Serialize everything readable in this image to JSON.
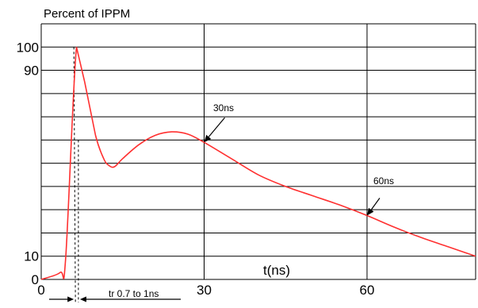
{
  "chart_data": {
    "type": "line",
    "title": "Percent of IPPM",
    "xlabel": "t(ns)",
    "ylabel": "Percent of IPPM",
    "xlim": [
      0,
      80
    ],
    "ylim": [
      0,
      110
    ],
    "y_ticks": [
      0,
      10,
      90,
      100
    ],
    "x_ticks": [
      0,
      30,
      60
    ],
    "grid": true,
    "series": [
      {
        "color": "#ff3030",
        "points": [
          [
            0,
            0
          ],
          [
            3.5,
            3
          ],
          [
            4.5,
            9
          ],
          [
            6.5,
            100
          ],
          [
            8,
            85
          ],
          [
            10,
            62
          ],
          [
            11.5,
            52
          ],
          [
            12.5,
            49
          ],
          [
            13.5,
            48.5
          ],
          [
            15,
            52
          ],
          [
            18,
            58
          ],
          [
            21,
            62
          ],
          [
            24,
            63.5
          ],
          [
            27,
            62.5
          ],
          [
            30,
            59
          ],
          [
            35,
            52
          ],
          [
            40,
            45
          ],
          [
            45,
            40
          ],
          [
            50,
            36
          ],
          [
            55,
            32
          ],
          [
            60,
            27.5
          ],
          [
            65,
            22.5
          ],
          [
            70,
            18
          ],
          [
            75,
            14
          ],
          [
            80,
            10
          ]
        ]
      }
    ],
    "annotations": [
      {
        "text": "30ns",
        "x": 30,
        "y": 59
      },
      {
        "text": "60ns",
        "x": 60,
        "y": 27.5
      },
      {
        "text": "tr 0.7 to 1ns",
        "x": 6.5
      }
    ]
  }
}
